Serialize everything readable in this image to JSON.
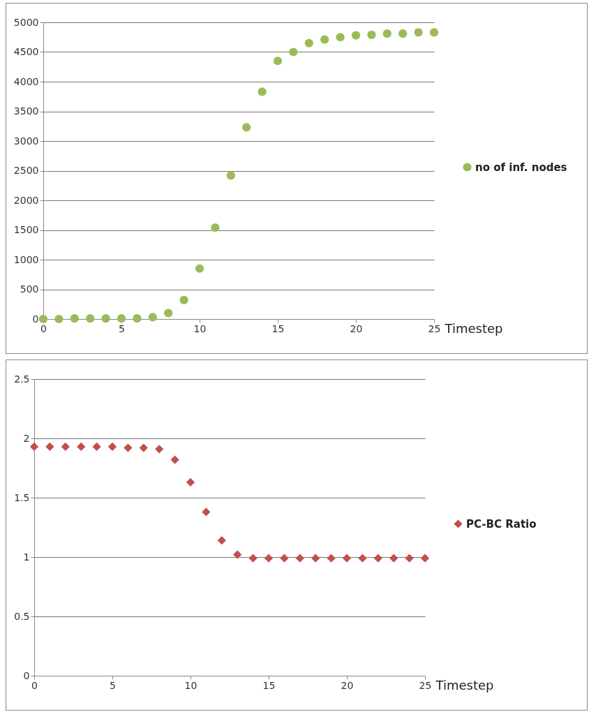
{
  "chart_data": [
    {
      "type": "scatter",
      "xlabel": "Timestep",
      "x": [
        0,
        1,
        2,
        3,
        4,
        5,
        6,
        7,
        8,
        9,
        10,
        11,
        12,
        13,
        14,
        15,
        16,
        17,
        18,
        19,
        20,
        21,
        22,
        23,
        24,
        25
      ],
      "series": [
        {
          "name": "no of inf. nodes",
          "color": "#9bbb59",
          "values": [
            0,
            0,
            10,
            10,
            10,
            10,
            10,
            30,
            100,
            320,
            850,
            1540,
            2420,
            3230,
            3830,
            4350,
            4500,
            4650,
            4710,
            4750,
            4780,
            4790,
            4810,
            4810,
            4830,
            4830
          ]
        }
      ],
      "xlim": [
        0,
        25
      ],
      "xticks": [
        0,
        5,
        10,
        15,
        20,
        25
      ],
      "ylim": [
        0,
        5000
      ],
      "yticks": [
        0,
        500,
        1000,
        1500,
        2000,
        2500,
        3000,
        3500,
        4000,
        4500,
        5000
      ],
      "grid": "y",
      "legend": "right",
      "marker": "circle"
    },
    {
      "type": "scatter",
      "xlabel": "Timestep",
      "x": [
        0,
        1,
        2,
        3,
        4,
        5,
        6,
        7,
        8,
        9,
        10,
        11,
        12,
        13,
        14,
        15,
        16,
        17,
        18,
        19,
        20,
        21,
        22,
        23,
        24,
        25
      ],
      "series": [
        {
          "name": "PC-BC Ratio",
          "color": "#c0504d",
          "values": [
            1.93,
            1.93,
            1.93,
            1.93,
            1.93,
            1.93,
            1.92,
            1.92,
            1.91,
            1.82,
            1.63,
            1.38,
            1.14,
            1.02,
            0.99,
            0.99,
            0.99,
            0.99,
            0.99,
            0.99,
            0.99,
            0.99,
            0.99,
            0.99,
            0.99,
            0.99
          ]
        }
      ],
      "xlim": [
        0,
        25
      ],
      "xticks": [
        0,
        5,
        10,
        15,
        20,
        25
      ],
      "ylim": [
        0,
        2.5
      ],
      "yticks": [
        0,
        0.5,
        1,
        1.5,
        2,
        2.5
      ],
      "grid": "y",
      "legend": "right",
      "marker": "diamond"
    }
  ]
}
